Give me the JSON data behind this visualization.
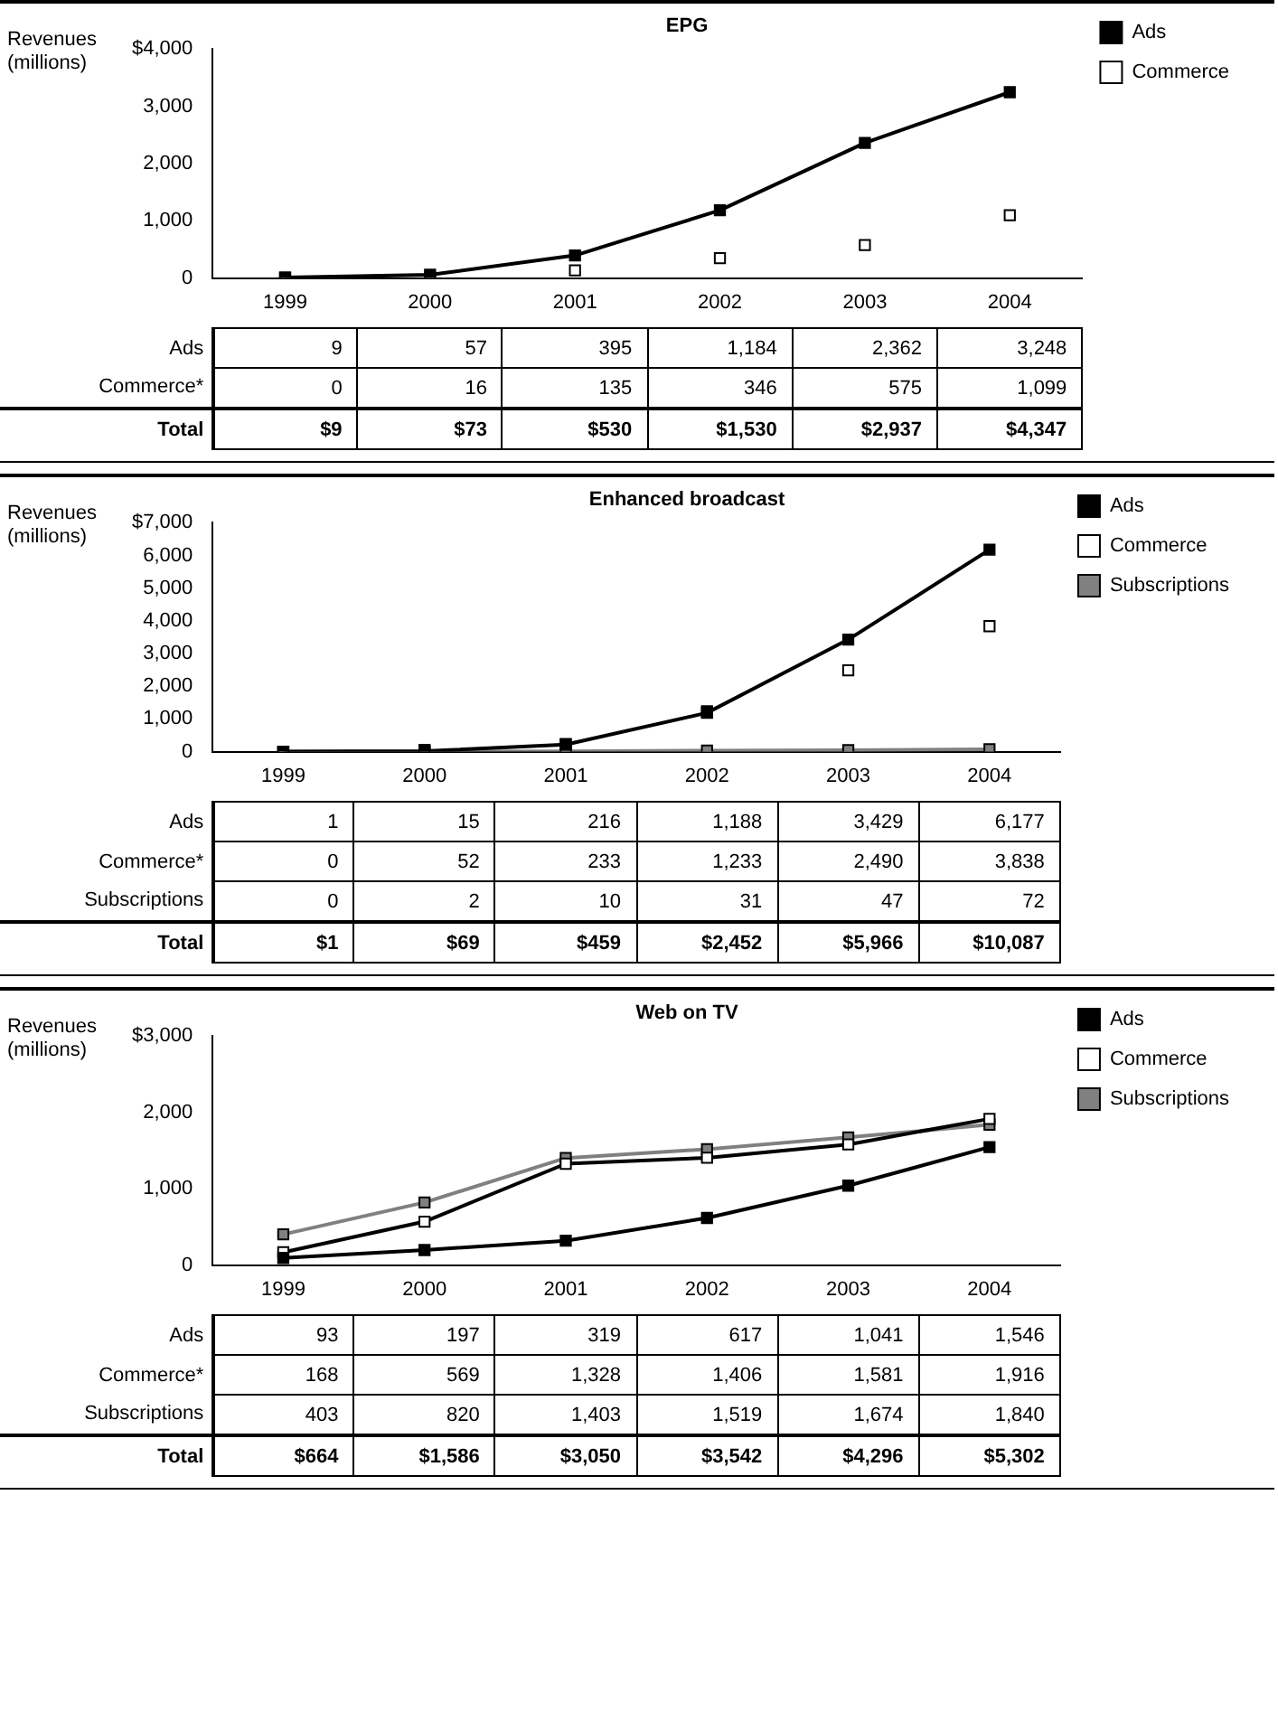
{
  "chart_data": [
    {
      "type": "line",
      "title": "EPG",
      "ylabel": "Revenues (millions)",
      "categories": [
        "1999",
        "2000",
        "2001",
        "2002",
        "2003",
        "2004"
      ],
      "series": [
        {
          "name": "Ads",
          "color": "#000000",
          "values": [
            9,
            57,
            395,
            1184,
            2362,
            3248
          ],
          "value_labels": [
            "9",
            "57",
            "395",
            "1,184",
            "2,362",
            "3,248"
          ]
        },
        {
          "name": "Commerce",
          "color": "#ffffff",
          "type": "scatter",
          "values": [
            0,
            16,
            135,
            346,
            575,
            1099
          ],
          "value_labels": [
            "0",
            "16",
            "135",
            "346",
            "575",
            "1,099"
          ]
        }
      ],
      "ylim": [
        0,
        4000
      ],
      "yticks": [
        {
          "value": 0,
          "label": "0"
        },
        {
          "value": 1000,
          "label": "1,000"
        },
        {
          "value": 2000,
          "label": "2,000"
        },
        {
          "value": 3000,
          "label": "3,000"
        },
        {
          "value": 4000,
          "label": "$4,000"
        }
      ],
      "grid": false,
      "legend": "top right",
      "marker": "square",
      "totals": [
        "$9",
        "$73",
        "$530",
        "$1,530",
        "$2,937",
        "$4,347"
      ],
      "annotations": [
        "*",
        "Total"
      ]
    },
    {
      "type": "line",
      "title": "Enhanced broadcast",
      "ylabel": "Revenues (millions)",
      "categories": [
        "1999",
        "2000",
        "2001",
        "2002",
        "2003",
        "2004"
      ],
      "series": [
        {
          "name": "Ads",
          "color": "#000000",
          "values": [
            1,
            15,
            216,
            1188,
            3429,
            6177
          ],
          "value_labels": [
            "1",
            "15",
            "216",
            "1,188",
            "3,429",
            "6,177"
          ]
        },
        {
          "name": "Commerce",
          "color": "#ffffff",
          "type": "scatter",
          "values": [
            0,
            52,
            233,
            1233,
            2490,
            3838
          ],
          "value_labels": [
            "0",
            "52",
            "233",
            "1,233",
            "2,490",
            "3,838"
          ]
        },
        {
          "name": "Subscriptions",
          "color": "#808080",
          "values": [
            0,
            2,
            10,
            31,
            47,
            72
          ],
          "value_labels": [
            "0",
            "2",
            "10",
            "31",
            "47",
            "72"
          ]
        }
      ],
      "ylim": [
        0,
        7000
      ],
      "yticks": [
        {
          "value": 0,
          "label": "0"
        },
        {
          "value": 1000,
          "label": "1,000"
        },
        {
          "value": 2000,
          "label": "2,000"
        },
        {
          "value": 3000,
          "label": "3,000"
        },
        {
          "value": 4000,
          "label": "4,000"
        },
        {
          "value": 5000,
          "label": "5,000"
        },
        {
          "value": 6000,
          "label": "6,000"
        },
        {
          "value": 7000,
          "label": "$7,000"
        }
      ],
      "grid": false,
      "legend": "top right",
      "marker": "square",
      "totals": [
        "$1",
        "$69",
        "$459",
        "$2,452",
        "$5,966",
        "$10,087"
      ],
      "annotations": [
        "*",
        "Total"
      ]
    },
    {
      "type": "line",
      "title": "Web on TV",
      "ylabel": "Revenues (millions)",
      "categories": [
        "1999",
        "2000",
        "2001",
        "2002",
        "2003",
        "2004"
      ],
      "series": [
        {
          "name": "Ads",
          "color": "#000000",
          "values": [
            93,
            197,
            319,
            617,
            1041,
            1546
          ],
          "value_labels": [
            "93",
            "197",
            "319",
            "617",
            "1,041",
            "1,546"
          ]
        },
        {
          "name": "Commerce",
          "color": "#ffffff",
          "values": [
            168,
            569,
            1328,
            1406,
            1581,
            1916
          ],
          "value_labels": [
            "168",
            "569",
            "1,328",
            "1,406",
            "1,581",
            "1,916"
          ]
        },
        {
          "name": "Subscriptions",
          "color": "#808080",
          "values": [
            403,
            820,
            1403,
            1519,
            1674,
            1840
          ],
          "value_labels": [
            "403",
            "820",
            "1,403",
            "1,519",
            "1,674",
            "1,840"
          ]
        }
      ],
      "ylim": [
        0,
        3000
      ],
      "yticks": [
        {
          "value": 0,
          "label": "0"
        },
        {
          "value": 1000,
          "label": "1,000"
        },
        {
          "value": 2000,
          "label": "2,000"
        },
        {
          "value": 3000,
          "label": "$3,000"
        }
      ],
      "grid": false,
      "legend": "top right",
      "marker": "square",
      "totals": [
        "$664",
        "$1,586",
        "$3,050",
        "$3,542",
        "$4,296",
        "$5,302"
      ],
      "annotations": [
        "*",
        "Total"
      ]
    }
  ]
}
